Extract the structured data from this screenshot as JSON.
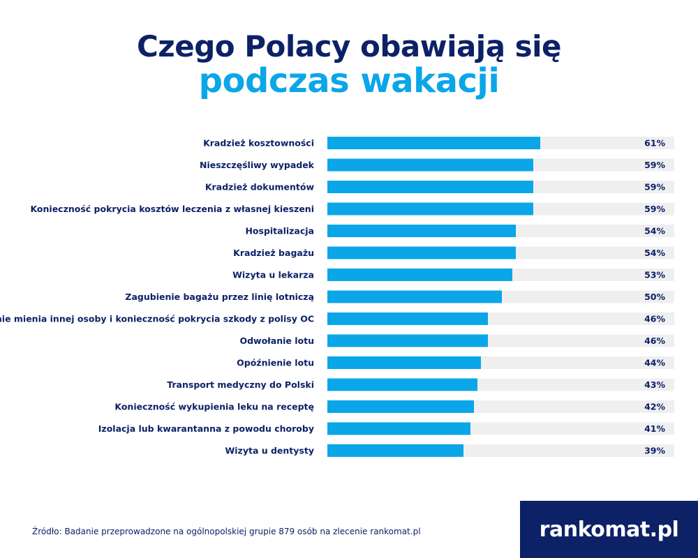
{
  "title_line1": "Czego Polacy obawiają się",
  "title_line2": "podczas wakacji",
  "source": "Źródło: Badanie przeprowadzone na ogólnopolskiej grupie 879 osób na zlecenie rankomat.pl",
  "brand": "rankomat.pl",
  "colors": {
    "bar": "#0aa6e8",
    "track": "#efefef",
    "navy": "#0d2167"
  },
  "chart_data": {
    "type": "bar",
    "orientation": "horizontal",
    "unit": "%",
    "xlim": [
      0,
      100
    ],
    "grid": false,
    "categories": [
      "Kradzież kosztowności",
      "Nieszczęśliwy wypadek",
      "Kradzież dokumentów",
      "Konieczność pokrycia kosztów leczenia z własnej kieszeni",
      "Hospitalizacja",
      "Kradzież bagażu",
      "Wizyta u lekarza",
      "Zagubienie bagażu przez linię lotniczą",
      "Uszkodzenie mienia innej osoby i konieczność pokrycia szkody z polisy OC",
      "Odwołanie lotu",
      "Opóźnienie lotu",
      "Transport medyczny do Polski",
      "Konieczność wykupienia leku na receptę",
      "Izolacja lub kwarantanna z powodu choroby",
      "Wizyta u dentysty"
    ],
    "values": [
      61,
      59,
      59,
      59,
      54,
      54,
      53,
      50,
      46,
      46,
      44,
      43,
      42,
      41,
      39
    ],
    "value_labels": [
      "61%",
      "59%",
      "59%",
      "59%",
      "54%",
      "54%",
      "53%",
      "50%",
      "46%",
      "46%",
      "44%",
      "43%",
      "42%",
      "41%",
      "39%"
    ]
  }
}
